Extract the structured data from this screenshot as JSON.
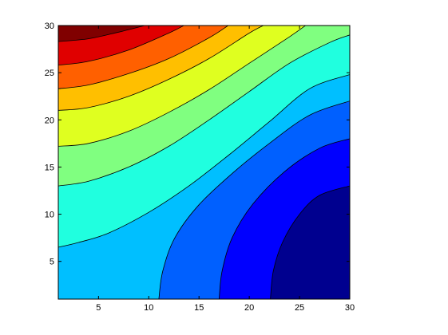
{
  "chart_data": {
    "type": "contourf",
    "title": "",
    "xlabel": "",
    "ylabel": "",
    "xlim": [
      1,
      30
    ],
    "ylim": [
      1,
      30
    ],
    "x_ticks": [
      5,
      10,
      15,
      20,
      25,
      30
    ],
    "y_ticks": [
      5,
      10,
      15,
      20,
      25,
      30
    ],
    "colormap": "jet",
    "grid": false,
    "band_colors": [
      "#00008F",
      "#0000FF",
      "#0060FF",
      "#00BFFF",
      "#20FFDF",
      "#80FF80",
      "#DFFF20",
      "#FFBF00",
      "#FF6000",
      "#E00000",
      "#800000"
    ],
    "contour_levels": [
      {
        "level": 1,
        "points": [
          [
            22.1,
            1
          ],
          [
            22.4,
            4
          ],
          [
            23.3,
            7
          ],
          [
            25,
            10
          ],
          [
            27,
            12
          ],
          [
            30,
            13
          ]
        ]
      },
      {
        "level": 2,
        "points": [
          [
            17,
            1
          ],
          [
            17.3,
            4
          ],
          [
            18.3,
            7.5
          ],
          [
            20.3,
            11
          ],
          [
            23.5,
            14.5
          ],
          [
            27,
            17
          ],
          [
            30,
            18
          ]
        ]
      },
      {
        "level": 3,
        "points": [
          [
            11,
            1
          ],
          [
            11.4,
            4
          ],
          [
            12.6,
            7.5
          ],
          [
            15,
            11
          ],
          [
            18.5,
            14.5
          ],
          [
            22,
            17.5
          ],
          [
            26,
            20.5
          ],
          [
            30,
            22
          ]
        ]
      },
      {
        "level": 4,
        "points": [
          [
            1,
            6.5
          ],
          [
            3,
            7
          ],
          [
            6,
            8
          ],
          [
            10,
            10.2
          ],
          [
            14,
            13
          ],
          [
            18,
            16.3
          ],
          [
            22,
            19.8
          ],
          [
            26,
            23.3
          ],
          [
            30,
            24.8
          ]
        ]
      },
      {
        "level": 5,
        "points": [
          [
            1,
            13
          ],
          [
            4,
            13.5
          ],
          [
            8,
            15
          ],
          [
            12,
            17.2
          ],
          [
            16,
            20
          ],
          [
            20,
            23
          ],
          [
            24,
            26
          ],
          [
            28,
            28.2
          ],
          [
            30,
            29
          ]
        ]
      },
      {
        "level": 6,
        "points": [
          [
            1,
            17.2
          ],
          [
            4,
            17.5
          ],
          [
            8,
            18.8
          ],
          [
            12,
            20.8
          ],
          [
            16,
            23.2
          ],
          [
            20,
            26
          ],
          [
            24,
            28.8
          ],
          [
            25.6,
            30
          ]
        ]
      },
      {
        "level": 7,
        "points": [
          [
            1,
            21
          ],
          [
            4,
            21.3
          ],
          [
            8,
            22.5
          ],
          [
            12,
            24.3
          ],
          [
            16,
            26.5
          ],
          [
            20,
            29.2
          ],
          [
            21.4,
            30
          ]
        ]
      },
      {
        "level": 8,
        "points": [
          [
            1,
            23.3
          ],
          [
            4,
            23.7
          ],
          [
            8,
            24.9
          ],
          [
            12,
            26.5
          ],
          [
            16,
            28.7
          ],
          [
            17.9,
            30
          ]
        ]
      },
      {
        "level": 9,
        "points": [
          [
            1,
            25.8
          ],
          [
            4,
            26.2
          ],
          [
            8,
            27.4
          ],
          [
            12,
            29.2
          ],
          [
            13.5,
            30
          ]
        ]
      },
      {
        "level": 10,
        "points": [
          [
            1,
            28.3
          ],
          [
            4,
            28.6
          ],
          [
            7,
            29.3
          ],
          [
            9.6,
            30
          ]
        ]
      }
    ]
  }
}
